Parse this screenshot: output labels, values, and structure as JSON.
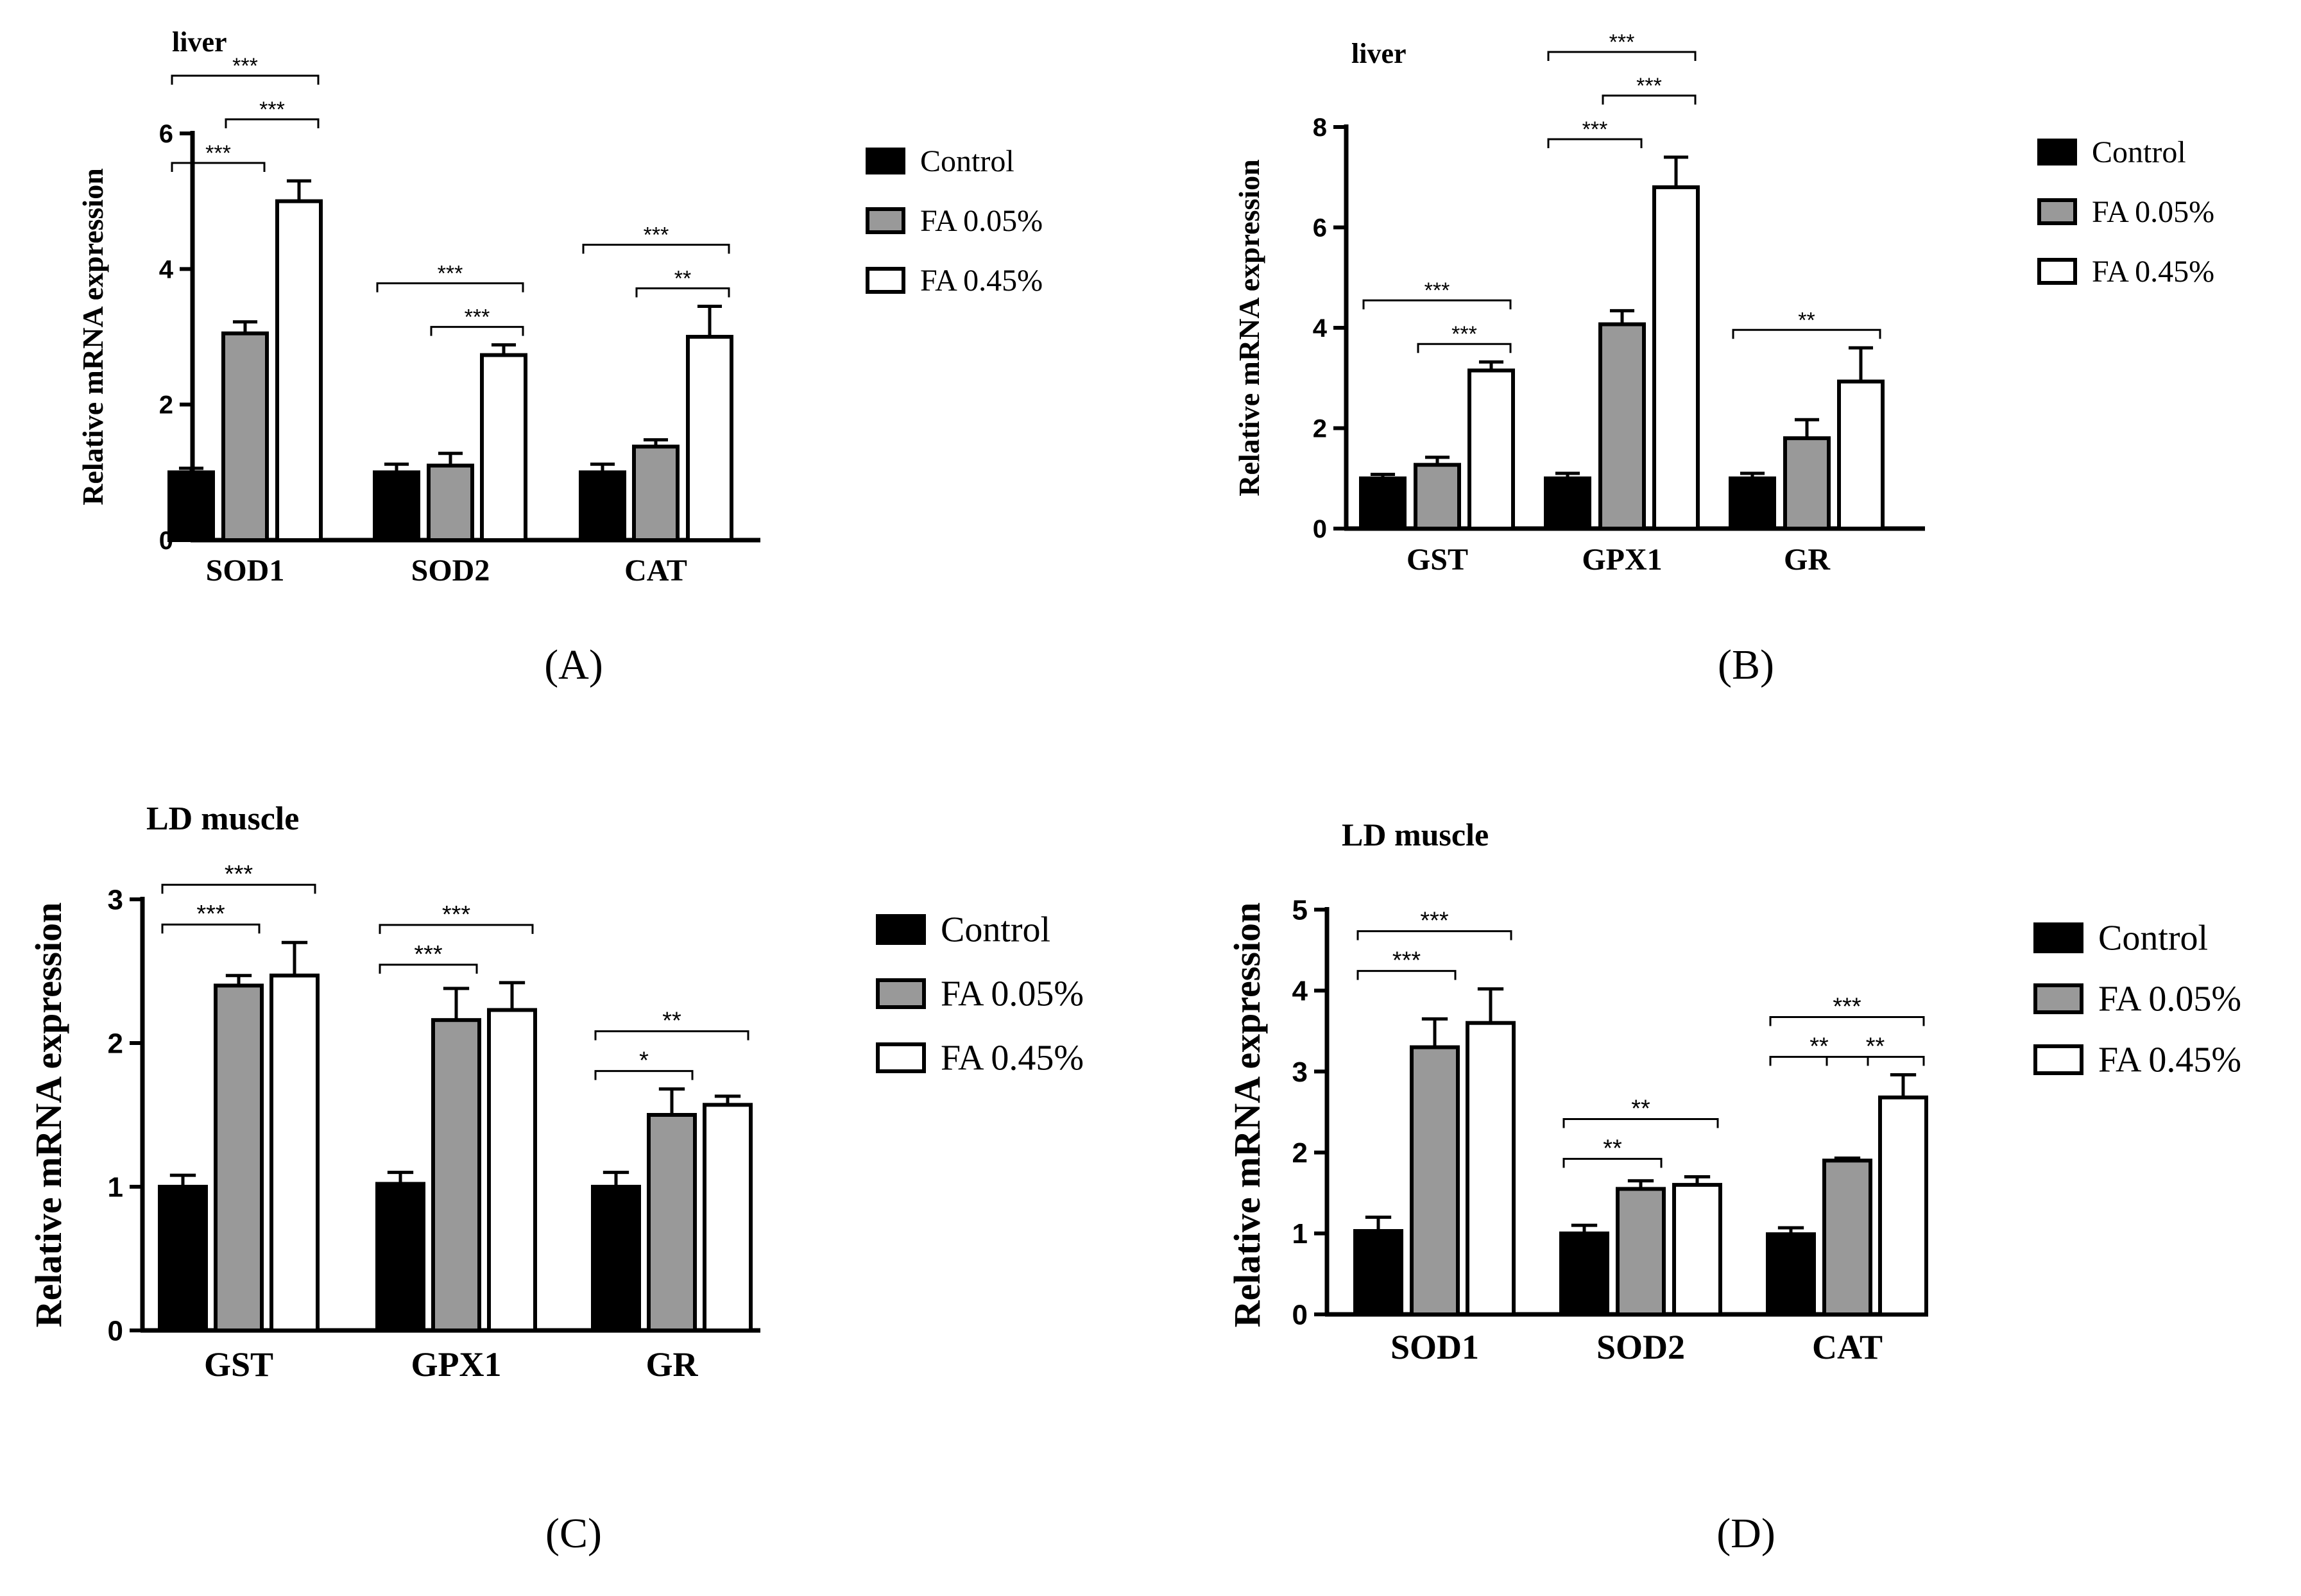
{
  "figure": {
    "series_colors": {
      "Control": "#000000",
      "FA 0.05%": "#999999",
      "FA 0.45%": "#ffffff"
    }
  },
  "chart_data": [
    {
      "panel": "A",
      "panel_label": "(A)",
      "type": "bar",
      "title": "liver",
      "xlabel": "",
      "ylabel": "Relative mRNA expression",
      "ylim": [
        0,
        6
      ],
      "yticks": [
        0,
        2,
        4,
        6
      ],
      "categories": [
        "SOD1",
        "SOD2",
        "CAT"
      ],
      "series": [
        {
          "name": "Control",
          "values": [
            1.0,
            1.0,
            1.0
          ],
          "errors": [
            0.06,
            0.12,
            0.12
          ]
        },
        {
          "name": "FA 0.05%",
          "values": [
            3.05,
            1.1,
            1.38
          ],
          "errors": [
            0.17,
            0.18,
            0.1
          ]
        },
        {
          "name": "FA 0.45%",
          "values": [
            5.0,
            2.73,
            3.0
          ],
          "errors": [
            0.3,
            0.15,
            0.45
          ]
        }
      ],
      "significance": [
        {
          "category": 0,
          "from": 0,
          "to": 2,
          "level": 2,
          "label": "***"
        },
        {
          "category": 0,
          "from": 1,
          "to": 2,
          "level": 1,
          "label": "***"
        },
        {
          "category": 0,
          "from": 0,
          "to": 1,
          "level": 0,
          "label": "***"
        },
        {
          "category": 1,
          "from": 0,
          "to": 2,
          "level": 1,
          "label": "***"
        },
        {
          "category": 1,
          "from": 1,
          "to": 2,
          "level": 0,
          "label": "***"
        },
        {
          "category": 2,
          "from": 0,
          "to": 2,
          "level": 1,
          "label": "***"
        },
        {
          "category": 2,
          "from": 1,
          "to": 2,
          "level": 0,
          "label": "**"
        }
      ],
      "legend": [
        "Control",
        "FA 0.05%",
        "FA 0.45%"
      ]
    },
    {
      "panel": "B",
      "panel_label": "(B)",
      "type": "bar",
      "title": "liver",
      "xlabel": "",
      "ylabel": "Relative mRNA expression",
      "ylim": [
        0,
        8
      ],
      "yticks": [
        0,
        2,
        4,
        6,
        8
      ],
      "categories": [
        "GST",
        "GPX1",
        "GR"
      ],
      "series": [
        {
          "name": "Control",
          "values": [
            1.0,
            1.0,
            1.0
          ],
          "errors": [
            0.08,
            0.1,
            0.1
          ]
        },
        {
          "name": "FA 0.05%",
          "values": [
            1.27,
            4.07,
            1.8
          ],
          "errors": [
            0.15,
            0.27,
            0.37
          ]
        },
        {
          "name": "FA 0.45%",
          "values": [
            3.15,
            6.8,
            2.93
          ],
          "errors": [
            0.17,
            0.6,
            0.67
          ]
        }
      ],
      "significance": [
        {
          "category": 0,
          "from": 0,
          "to": 2,
          "level": 1,
          "label": "***"
        },
        {
          "category": 0,
          "from": 1,
          "to": 2,
          "level": 0,
          "label": "***"
        },
        {
          "category": 1,
          "from": 0,
          "to": 2,
          "level": 2,
          "label": "***"
        },
        {
          "category": 1,
          "from": 1,
          "to": 2,
          "level": 1,
          "label": "***"
        },
        {
          "category": 1,
          "from": 0,
          "to": 1,
          "level": 0,
          "label": "***"
        },
        {
          "category": 2,
          "from": 0,
          "to": 2,
          "level": 0,
          "label": "**"
        }
      ],
      "legend": [
        "Control",
        "FA 0.05%",
        "FA 0.45%"
      ]
    },
    {
      "panel": "C",
      "panel_label": "(C)",
      "type": "bar",
      "title": "LD muscle",
      "xlabel": "",
      "ylabel": "Relative mRNA expression",
      "ylim": [
        0,
        3
      ],
      "yticks": [
        0,
        1,
        2,
        3
      ],
      "categories": [
        "GST",
        "GPX1",
        "GR"
      ],
      "series": [
        {
          "name": "Control",
          "values": [
            1.0,
            1.02,
            1.0
          ],
          "errors": [
            0.08,
            0.08,
            0.1
          ]
        },
        {
          "name": "FA 0.05%",
          "values": [
            2.4,
            2.16,
            1.5
          ],
          "errors": [
            0.07,
            0.22,
            0.18
          ]
        },
        {
          "name": "FA 0.45%",
          "values": [
            2.47,
            2.23,
            1.57
          ],
          "errors": [
            0.23,
            0.19,
            0.06
          ]
        }
      ],
      "significance": [
        {
          "category": 0,
          "from": 0,
          "to": 2,
          "level": 1,
          "label": "***"
        },
        {
          "category": 0,
          "from": 0,
          "to": 1,
          "level": 0,
          "label": "***"
        },
        {
          "category": 1,
          "from": 0,
          "to": 2,
          "level": 1,
          "label": "***"
        },
        {
          "category": 1,
          "from": 0,
          "to": 1,
          "level": 0,
          "label": "***"
        },
        {
          "category": 2,
          "from": 0,
          "to": 2,
          "level": 1,
          "label": "**"
        },
        {
          "category": 2,
          "from": 0,
          "to": 1,
          "level": 0,
          "label": "*"
        }
      ],
      "legend": [
        "Control",
        "FA 0.05%",
        "FA 0.45%"
      ]
    },
    {
      "panel": "D",
      "panel_label": "(D)",
      "type": "bar",
      "title": "LD muscle",
      "xlabel": "",
      "ylabel": "Relative mRNA expression",
      "ylim": [
        0,
        5
      ],
      "yticks": [
        0,
        1,
        2,
        3,
        4,
        5
      ],
      "categories": [
        "SOD1",
        "SOD2",
        "CAT"
      ],
      "series": [
        {
          "name": "Control",
          "values": [
            1.03,
            1.0,
            0.99
          ],
          "errors": [
            0.17,
            0.1,
            0.08
          ]
        },
        {
          "name": "FA 0.05%",
          "values": [
            3.3,
            1.55,
            1.9
          ],
          "errors": [
            0.35,
            0.1,
            0.03
          ]
        },
        {
          "name": "FA 0.45%",
          "values": [
            3.6,
            1.6,
            2.68
          ],
          "errors": [
            0.42,
            0.1,
            0.28
          ]
        }
      ],
      "significance": [
        {
          "category": 0,
          "from": 0,
          "to": 2,
          "level": 1,
          "label": "***"
        },
        {
          "category": 0,
          "from": 0,
          "to": 1,
          "level": 0,
          "label": "***"
        },
        {
          "category": 1,
          "from": 0,
          "to": 2,
          "level": 1,
          "label": "**"
        },
        {
          "category": 1,
          "from": 0,
          "to": 1,
          "level": 0,
          "label": "**"
        },
        {
          "category": 2,
          "from": 0,
          "to": 2,
          "level": 1,
          "label": "***"
        },
        {
          "category": 2,
          "from": 1,
          "to": 2,
          "level": 0,
          "label": "**"
        },
        {
          "category": 2,
          "from": 0,
          "to": 1,
          "level": 0,
          "label": "**"
        }
      ],
      "legend": [
        "Control",
        "FA 0.05%",
        "FA 0.45%"
      ]
    }
  ]
}
